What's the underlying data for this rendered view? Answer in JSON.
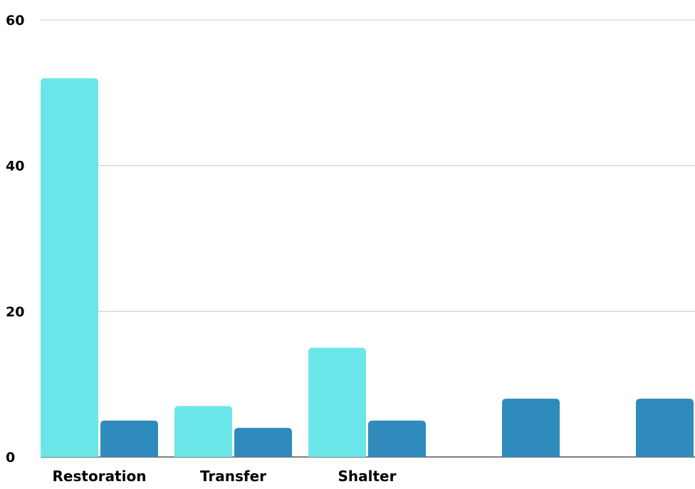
{
  "chart_data": {
    "type": "bar",
    "categories": [
      "Restoration",
      "Transfer",
      "Shalter",
      "",
      ""
    ],
    "series": [
      {
        "color": "#6ae6e8",
        "values": [
          52,
          7,
          15,
          null,
          null
        ]
      },
      {
        "color": "#2e8bbb",
        "values": [
          5,
          4,
          5,
          8,
          8
        ]
      }
    ],
    "ylim": [
      0,
      60
    ],
    "yticks": [
      0,
      20,
      40,
      60
    ],
    "grid": true,
    "legend": "none"
  }
}
